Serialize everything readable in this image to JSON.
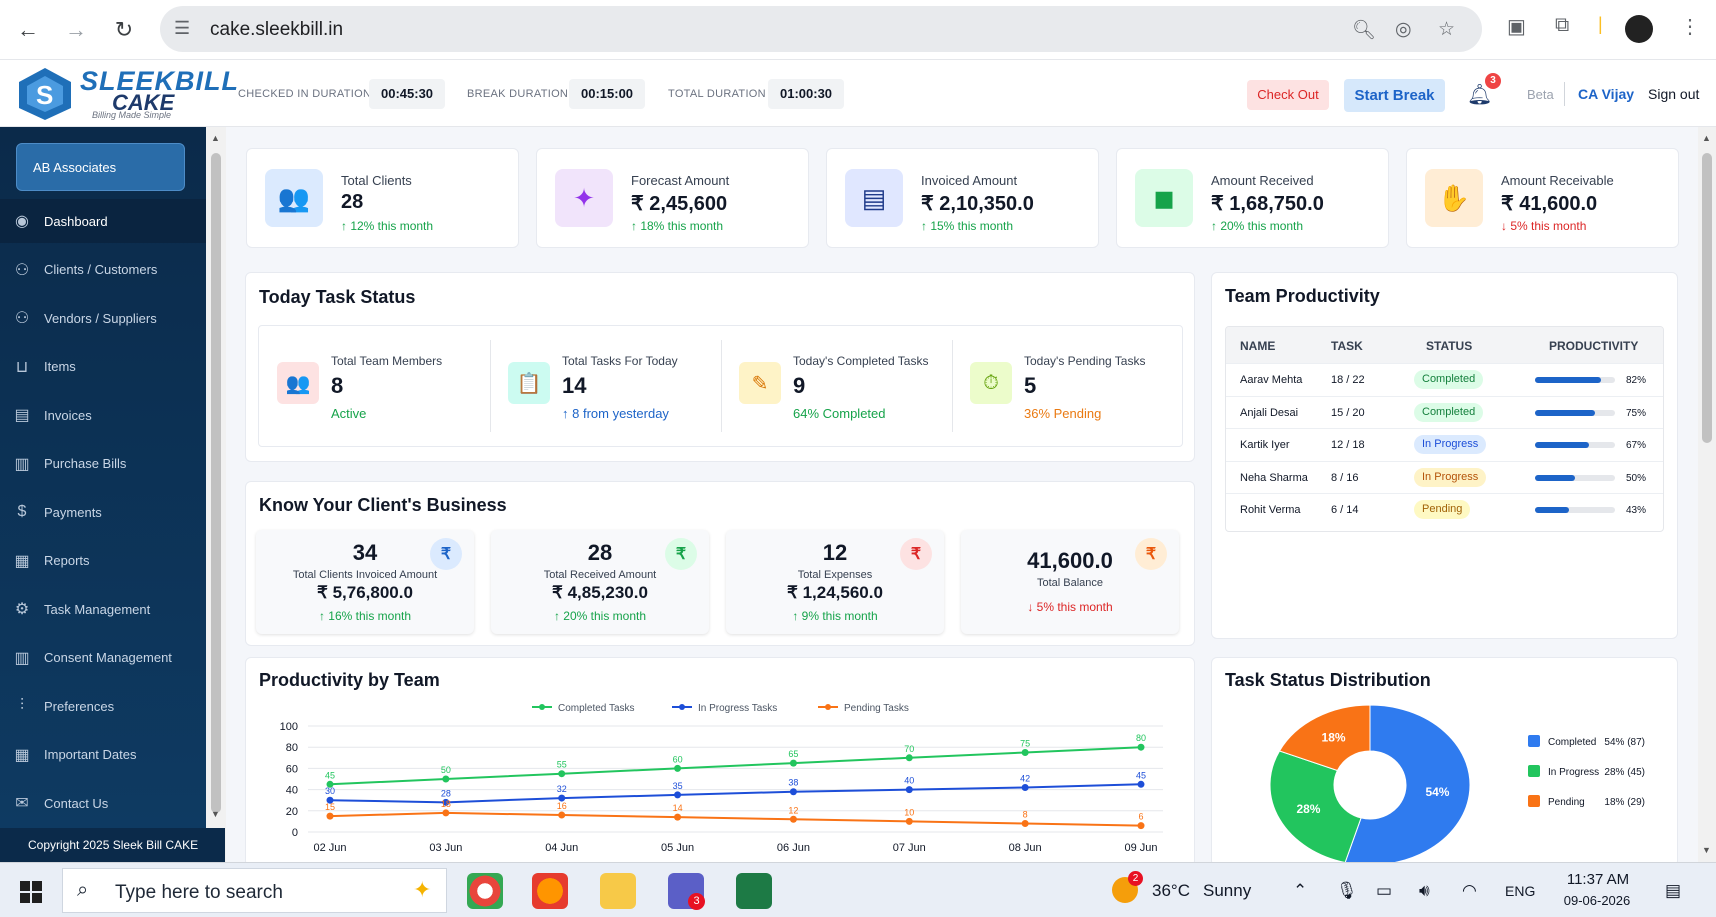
{
  "browser": {
    "url": "cake.sleekbill.in"
  },
  "header": {
    "logo_title": "SLEEKBILL",
    "logo_sub": "CAKE",
    "logo_tagline": "Billing Made Simple",
    "checked_in_label": "CHECKED IN DURATION",
    "checked_in_value": "00:45:30",
    "break_label": "BREAK DURATION",
    "break_value": "00:15:00",
    "total_label": "TOTAL DURATION",
    "total_value": "01:00:30",
    "checkout_label": "Check Out",
    "start_break_label": "Start Break",
    "notification_count": "3",
    "beta_label": "Beta",
    "user_name": "CA Vijay",
    "signout_label": "Sign out"
  },
  "sidebar": {
    "company": "AB Associates",
    "items": [
      {
        "label": "Dashboard",
        "icon": "eye-icon"
      },
      {
        "label": "Clients / Customers",
        "icon": "users-icon"
      },
      {
        "label": "Vendors / Suppliers",
        "icon": "users-icon"
      },
      {
        "label": "Items",
        "icon": "basket-icon"
      },
      {
        "label": "Invoices",
        "icon": "invoice-icon"
      },
      {
        "label": "Purchase Bills",
        "icon": "bill-icon"
      },
      {
        "label": "Payments",
        "icon": "dollar-icon"
      },
      {
        "label": "Reports",
        "icon": "chart-icon"
      },
      {
        "label": "Task Management",
        "icon": "task-icon"
      },
      {
        "label": "Consent Management",
        "icon": "consent-icon"
      },
      {
        "label": "Preferences",
        "icon": "sliders-icon"
      },
      {
        "label": "Important Dates",
        "icon": "calendar-icon"
      },
      {
        "label": "Contact Us",
        "icon": "mail-icon"
      }
    ],
    "copyright": "Copyright 2025 Sleek Bill CAKE"
  },
  "kpis": [
    {
      "label": "Total Clients",
      "value": "28",
      "trend": "↑ 12% this month",
      "dir": "up",
      "icon_bg": "#dbeafe",
      "icon_color": "#1d64c8",
      "icon": "👥"
    },
    {
      "label": "Forecast Amount",
      "value": "₹ 2,45,600",
      "trend": "↑ 18% this month",
      "dir": "up",
      "icon_bg": "#f1e4fb",
      "icon_color": "#9333ea",
      "icon": "✦"
    },
    {
      "label": "Invoiced Amount",
      "value": "₹ 2,10,350.0",
      "trend": "↑ 15% this month",
      "dir": "up",
      "icon_bg": "#e0e7ff",
      "icon_color": "#1e3a8a",
      "icon": "▤"
    },
    {
      "label": "Amount Received",
      "value": "₹ 1,68,750.0",
      "trend": "↑ 20% this month",
      "dir": "up",
      "icon_bg": "#dcfce7",
      "icon_color": "#16a34a",
      "icon": "◼"
    },
    {
      "label": "Amount Receivable",
      "value": "₹ 41,600.0",
      "trend": "↓ 5% this month",
      "dir": "down",
      "icon_bg": "#ffedd5",
      "icon_color": "#ea580c",
      "icon": "✋"
    }
  ],
  "task_status": {
    "title": "Today Task Status",
    "items": [
      {
        "label": "Total Team Members",
        "value": "8",
        "sub": "Active",
        "sub_class": "up",
        "icon_bg": "#fde2e2",
        "icon_color": "#dc2626",
        "icon": "👥"
      },
      {
        "label": "Total Tasks For Today",
        "value": "14",
        "sub": "↑ 8 from yesterday",
        "sub_class": "blue",
        "icon_bg": "#ccfbf1",
        "icon_color": "#0d9488",
        "icon": "📋"
      },
      {
        "label": "Today's Completed Tasks",
        "value": "9",
        "sub": "64% Completed",
        "sub_class": "up",
        "icon_bg": "#fef3c7",
        "icon_color": "#d97706",
        "icon": "✎"
      },
      {
        "label": "Today's Pending Tasks",
        "value": "5",
        "sub": "36% Pending",
        "sub_class": "orange",
        "icon_bg": "#ecfccb",
        "icon_color": "#65a30d",
        "icon": "⏱"
      }
    ]
  },
  "business": {
    "title": "Know Your Client's Business",
    "cards": [
      {
        "num": "34",
        "label": "Total Clients Invoiced Amount",
        "amount": "₹ 5,76,800.0",
        "trend": "↑ 16% this month",
        "dir": "up",
        "badge_bg": "#dbeafe",
        "badge_color": "#1d64c8"
      },
      {
        "num": "28",
        "label": "Total Received Amount",
        "amount": "₹ 4,85,230.0",
        "trend": "↑ 20% this month",
        "dir": "up",
        "badge_bg": "#dcfce7",
        "badge_color": "#16a34a"
      },
      {
        "num": "12",
        "label": "Total Expenses",
        "amount": "₹ 1,24,560.0",
        "trend": "↑ 9% this month",
        "dir": "up",
        "badge_bg": "#fde2e2",
        "badge_color": "#dc2626"
      },
      {
        "num": "41,600.0",
        "label": "Total Balance",
        "amount": "",
        "trend": "↓ 5% this month",
        "dir": "down",
        "badge_bg": "#ffedd5",
        "badge_color": "#ea580c"
      }
    ],
    "badge_symbol": "₹"
  },
  "team_productivity": {
    "title": "Team Productivity",
    "columns": [
      "NAME",
      "TASK",
      "STATUS",
      "PRODUCTIVITY"
    ],
    "rows": [
      {
        "name": "Aarav Mehta",
        "task": "18 / 22",
        "status": "Completed",
        "status_type": "completed",
        "productivity": 82,
        "pct": "82%"
      },
      {
        "name": "Anjali Desai",
        "task": "15 / 20",
        "status": "Completed",
        "status_type": "completed",
        "productivity": 75,
        "pct": "75%"
      },
      {
        "name": "Kartik Iyer",
        "task": "12 / 18",
        "status": "In Progress",
        "status_type": "inprogress",
        "productivity": 67,
        "pct": "67%"
      },
      {
        "name": "Neha Sharma",
        "task": "8 / 16",
        "status": "In Progress",
        "status_type": "inprogress2",
        "productivity": 50,
        "pct": "50%"
      },
      {
        "name": "Rohit Verma",
        "task": "6 / 14",
        "status": "Pending",
        "status_type": "pending",
        "productivity": 43,
        "pct": "43%"
      }
    ]
  },
  "chart_data": [
    {
      "type": "line",
      "title": "Productivity by Team",
      "categories": [
        "02 Jun",
        "03 Jun",
        "04 Jun",
        "05 Jun",
        "06 Jun",
        "07 Jun",
        "08 Jun",
        "09 Jun"
      ],
      "ylim": [
        0,
        100
      ],
      "yticks": [
        0,
        20,
        40,
        60,
        80,
        100
      ],
      "legend_position": "top-center",
      "grid": true,
      "series": [
        {
          "name": "Completed Tasks",
          "color": "#22c55e",
          "values": [
            45,
            50,
            55,
            60,
            65,
            70,
            75,
            80
          ]
        },
        {
          "name": "In Progress Tasks",
          "color": "#1d4ed8",
          "values": [
            30,
            28,
            32,
            35,
            38,
            40,
            42,
            45
          ]
        },
        {
          "name": "Pending Tasks",
          "color": "#f97316",
          "values": [
            15,
            18,
            16,
            14,
            12,
            10,
            8,
            6
          ]
        }
      ]
    },
    {
      "type": "pie",
      "title": "Task Status Distribution",
      "donut": true,
      "legend_position": "right",
      "slices": [
        {
          "name": "Completed",
          "value": 54,
          "count": 87,
          "label": "54%",
          "legend_value": "54% (87)",
          "color": "#2f7bef"
        },
        {
          "name": "In Progress",
          "value": 28,
          "count": 45,
          "label": "28%",
          "legend_value": "28% (45)",
          "color": "#22c55e"
        },
        {
          "name": "Pending",
          "value": 18,
          "count": 29,
          "label": "18%",
          "legend_value": "18% (29)",
          "color": "#f97316"
        }
      ]
    }
  ],
  "taskbar": {
    "search_placeholder": "Type here to search",
    "weather_temp": "36°C",
    "weather_text": "Sunny",
    "weather_badge": "2",
    "teams_badge": "3",
    "language": "ENG",
    "time": "11:37 AM",
    "date": "09-06-2026"
  }
}
